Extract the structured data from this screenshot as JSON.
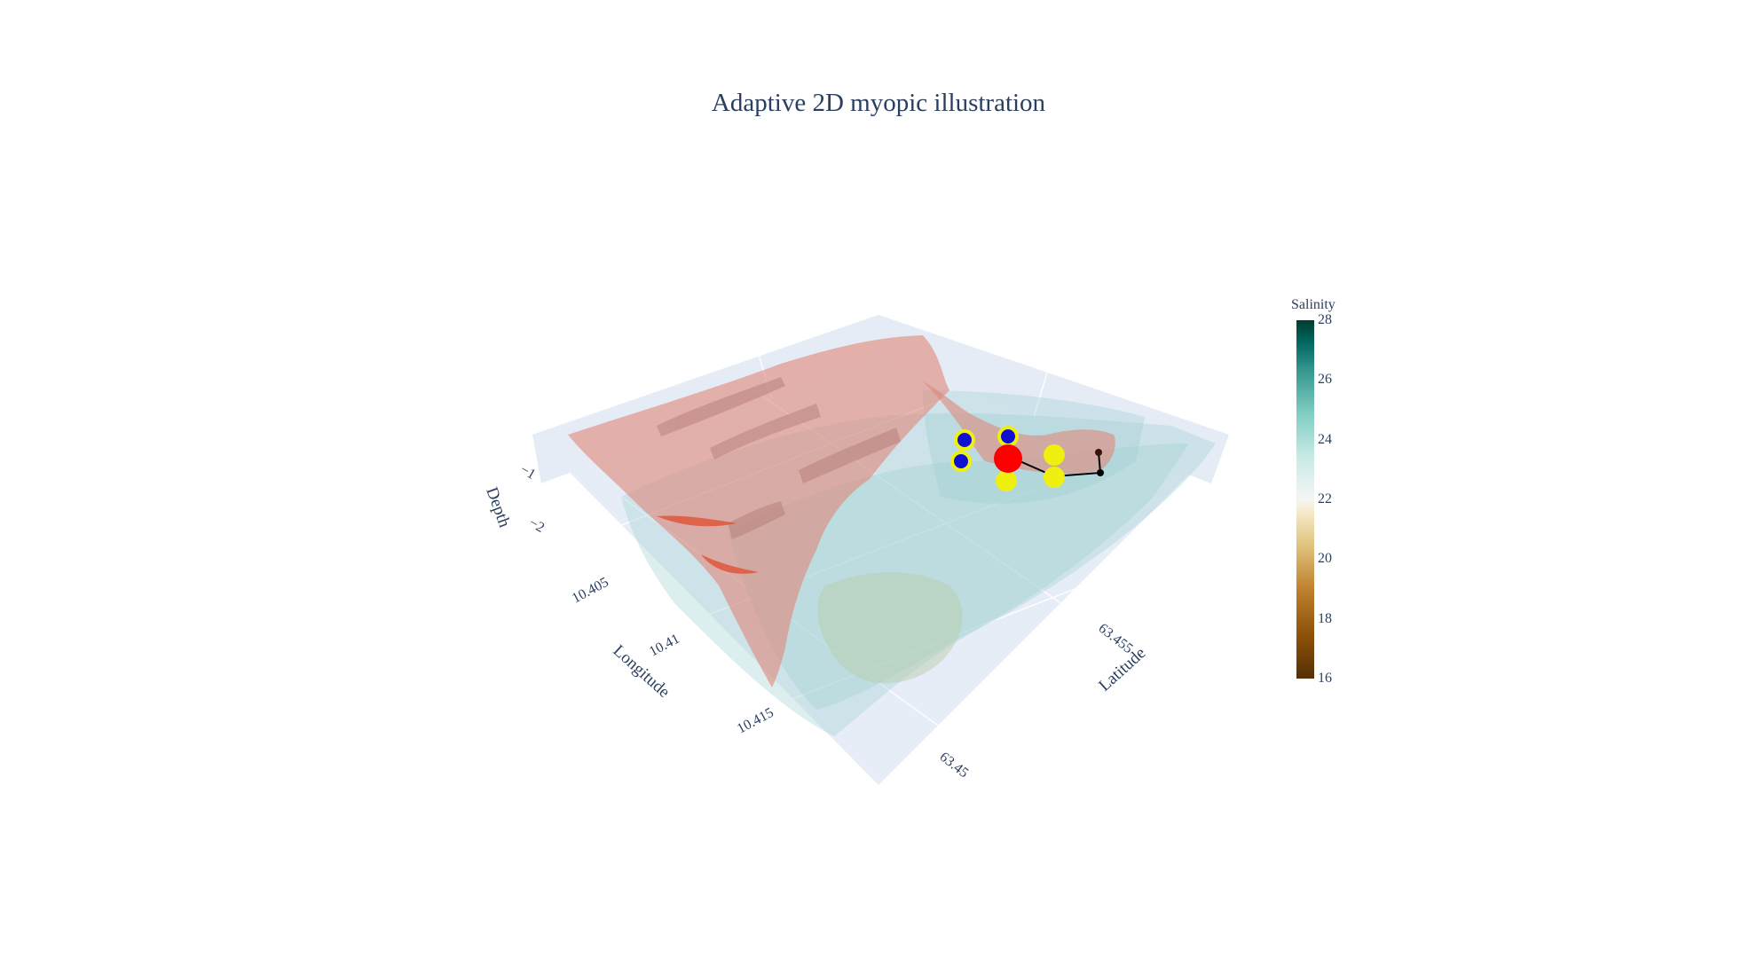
{
  "chart_data": {
    "type": "3d-surface",
    "title": "Adaptive 2D myopic illustration",
    "axes": {
      "x": {
        "label": "Longitude",
        "ticks": [
          "10.405",
          "10.41",
          "10.415"
        ]
      },
      "y": {
        "label": "Latitude",
        "ticks": [
          "63.45",
          "63.455"
        ]
      },
      "z": {
        "label": "Depth",
        "ticks": [
          "−1",
          "−2"
        ]
      }
    },
    "colorbar": {
      "title": "Salinity",
      "range": [
        16,
        28
      ],
      "ticks": [
        "28",
        "26",
        "24",
        "22",
        "20",
        "18",
        "16"
      ],
      "colorscale": "BrBG"
    },
    "colors": {
      "surface_excursion": "#e0877a",
      "surface_salinity": "#9fcfd0",
      "candidate_blue": "#1010d0",
      "candidate_yellow": "#f0f010",
      "current_location": "#ff0000",
      "trajectory": "#000000"
    },
    "markers": {
      "blue_candidates": 3,
      "yellow_candidates": 4,
      "current_location": 1,
      "trajectory_points": 4
    }
  }
}
